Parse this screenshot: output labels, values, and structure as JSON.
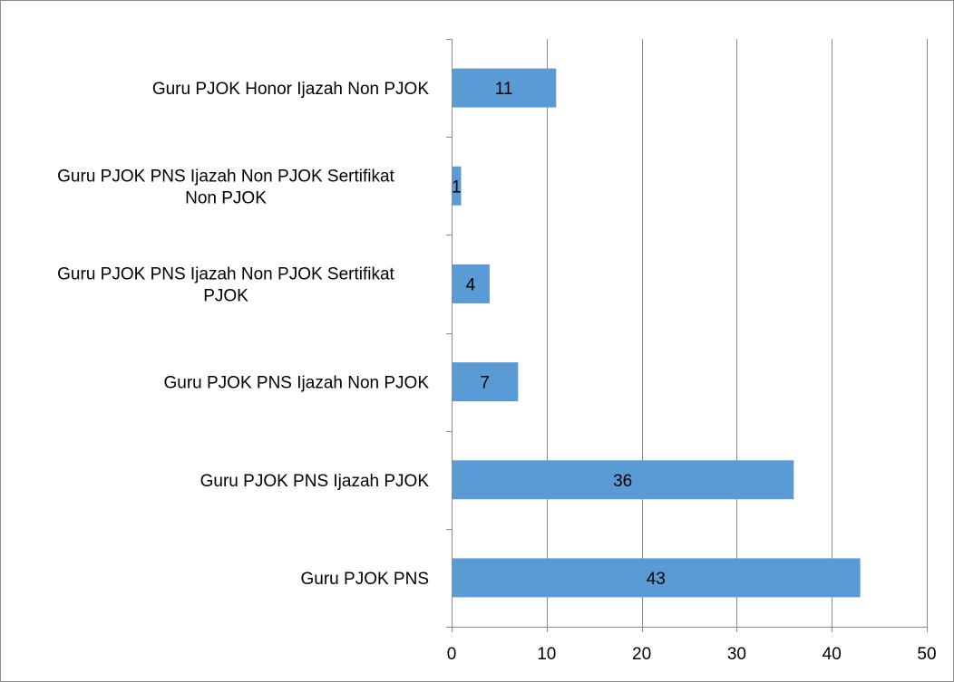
{
  "chart_data": {
    "type": "bar",
    "orientation": "horizontal",
    "categories": [
      "Guru PJOK Honor Ijazah Non PJOK",
      "Guru PJOK PNS Ijazah Non PJOK Sertifikat Non PJOK",
      "Guru PJOK PNS Ijazah Non PJOK Sertifikat PJOK",
      "Guru PJOK PNS Ijazah Non PJOK",
      "Guru PJOK PNS Ijazah PJOK",
      "Guru PJOK PNS"
    ],
    "category_lines": [
      [
        "Guru PJOK Honor Ijazah Non PJOK"
      ],
      [
        "Guru PJOK PNS Ijazah Non PJOK Sertifikat",
        "Non PJOK"
      ],
      [
        "Guru PJOK PNS Ijazah Non PJOK Sertifikat",
        "PJOK"
      ],
      [
        "Guru PJOK PNS Ijazah Non PJOK"
      ],
      [
        "Guru PJOK PNS Ijazah PJOK"
      ],
      [
        "Guru PJOK PNS"
      ]
    ],
    "values": [
      11,
      1,
      4,
      7,
      36,
      43
    ],
    "xlim": [
      0,
      50
    ],
    "xticks": [
      0,
      10,
      20,
      30,
      40,
      50
    ],
    "bar_color": "#5b9bd5",
    "gridlines": true,
    "data_labels": true,
    "legend": "none"
  }
}
